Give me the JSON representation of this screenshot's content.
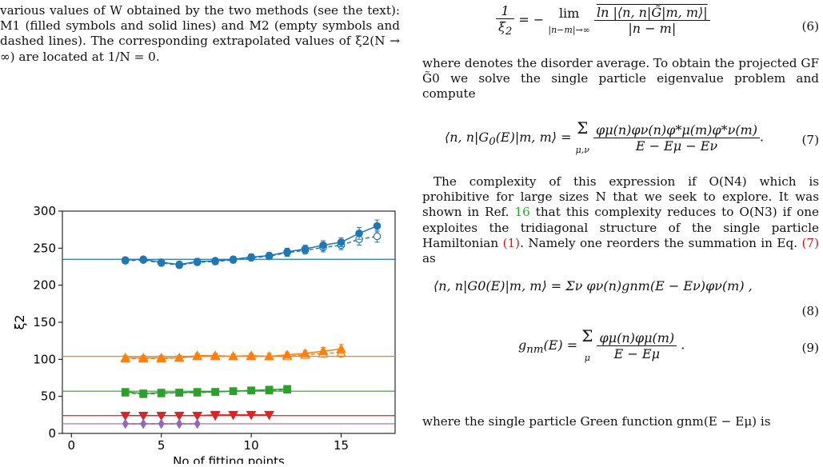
{
  "caption": {
    "text": "various values of W obtained by the two methods (see the text): M1 (filled symbols and solid lines) and M2 (empty symbols and dashed lines). The corresponding extrapolated values of ξ2(N → ∞) are located at 1/N = 0."
  },
  "right_column": {
    "eq6": {
      "lhs": "1/ξ2 = − lim|n−m|→∞",
      "numerator": "ln |⟨n, n|G̃|m, m⟩|",
      "denominator": "|n − m|",
      "number": "(6)"
    },
    "para1": "where  denotes the disorder average. To obtain the projected GF G̃0 we solve the single particle eigenvalue problem and compute",
    "eq7": {
      "lhs": "⟨n, n|G0(E)|m, m⟩ = Σμ,ν",
      "numerator": "φμ(n)φν(n)φ*μ(m)φ*ν(m)",
      "denominator": "E − Eμ − Eν",
      "number": "(7)"
    },
    "para2_a": "The complexity of this expression if O(N4) which is prohibitive for large sizes N that we seek to explore. It was shown in Ref.",
    "para2_ref": "16",
    "para2_b": "that this complexity reduces to O(N3) if one exploites the tridiagonal structure of the single particle Hamiltonian",
    "para2_eqref1": "(1)",
    "para2_c": ". Namely one reorders the summation in Eq.",
    "para2_eqref2": "(7)",
    "para2_d": "as",
    "eq8": {
      "text": "⟨n, n|G0(E)|m, m⟩ = Σν φν(n)gnm(E − Eν)φν(m) ,",
      "number": "(8)"
    },
    "eq9": {
      "lhs": "gnm(E) = Σμ",
      "numerator": "φμ(n)φμ(m)",
      "denominator": "E − Eμ",
      "number": "(9)"
    },
    "para3": "where the single particle Green function gnm(E − Eμ) is"
  },
  "chart_data": {
    "type": "line",
    "xlabel": "No of fitting points",
    "ylabel": "ξ2",
    "xlim": [
      -0.5,
      18
    ],
    "ylim": [
      0,
      300
    ],
    "x_ticks": [
      "0",
      "5",
      "10",
      "15"
    ],
    "y_ticks": [
      "0",
      "50",
      "100",
      "150",
      "200",
      "250",
      "300"
    ],
    "series": [
      {
        "color": "#1f77b4",
        "marker": "circle",
        "x": [
          3,
          4,
          5,
          6,
          7,
          8,
          9,
          10,
          11,
          12,
          13,
          14,
          15,
          16,
          17
        ],
        "m1": [
          234,
          235,
          231,
          228,
          232,
          233,
          235,
          238,
          240,
          245,
          249,
          254,
          258,
          270,
          280
        ],
        "m2": [
          233,
          234,
          230,
          227,
          231,
          232,
          234,
          237,
          239,
          244,
          247,
          251,
          254,
          262,
          266
        ],
        "err": [
          3,
          3,
          4,
          4,
          4,
          4,
          4,
          4,
          4,
          5,
          5,
          6,
          6,
          8,
          8
        ],
        "extrapolated": 235
      },
      {
        "color": "#ff7f0e",
        "marker": "triangle-up",
        "x": [
          3,
          4,
          5,
          6,
          7,
          8,
          9,
          10,
          11,
          12,
          13,
          14,
          15
        ],
        "m1": [
          102,
          102,
          102,
          102,
          105,
          105,
          104,
          105,
          104,
          106,
          108,
          111,
          114
        ],
        "m2": [
          101,
          101,
          101,
          102,
          104,
          104,
          104,
          104,
          104,
          104,
          106,
          108,
          109
        ],
        "err": [
          3,
          3,
          3,
          3,
          3,
          3,
          3,
          3,
          4,
          4,
          4,
          5,
          6
        ],
        "extrapolated": 104
      },
      {
        "color": "#2ca02c",
        "marker": "square",
        "x": [
          3,
          4,
          5,
          6,
          7,
          8,
          9,
          10,
          11,
          12
        ],
        "m1": [
          56,
          54,
          55,
          55,
          56,
          56,
          57,
          58,
          59,
          60
        ],
        "m2": [
          55,
          53,
          54,
          55,
          55,
          56,
          57,
          58,
          58,
          59
        ],
        "err": [
          2,
          2,
          2,
          2,
          2,
          2,
          2,
          2,
          2,
          3
        ],
        "extrapolated": 57
      },
      {
        "color": "#d62728",
        "marker": "triangle-down",
        "x": [
          3,
          4,
          5,
          6,
          7,
          8,
          9,
          10,
          11
        ],
        "m1": [
          24,
          24,
          24,
          24,
          24,
          25,
          25,
          25,
          25
        ],
        "m2": [
          24,
          24,
          24,
          24,
          24,
          24,
          25,
          25,
          25
        ],
        "err": [
          1,
          1,
          1,
          1,
          1,
          1,
          1,
          1,
          1
        ],
        "extrapolated": 24
      },
      {
        "color": "#9467bd",
        "marker": "diamond",
        "x": [
          3,
          4,
          5,
          6,
          7
        ],
        "m1": [
          13,
          13,
          13,
          13,
          13
        ],
        "m2": [
          13,
          13,
          13,
          13,
          13
        ],
        "err": [
          1,
          1,
          1,
          1,
          1
        ],
        "extrapolated": 13
      }
    ]
  }
}
